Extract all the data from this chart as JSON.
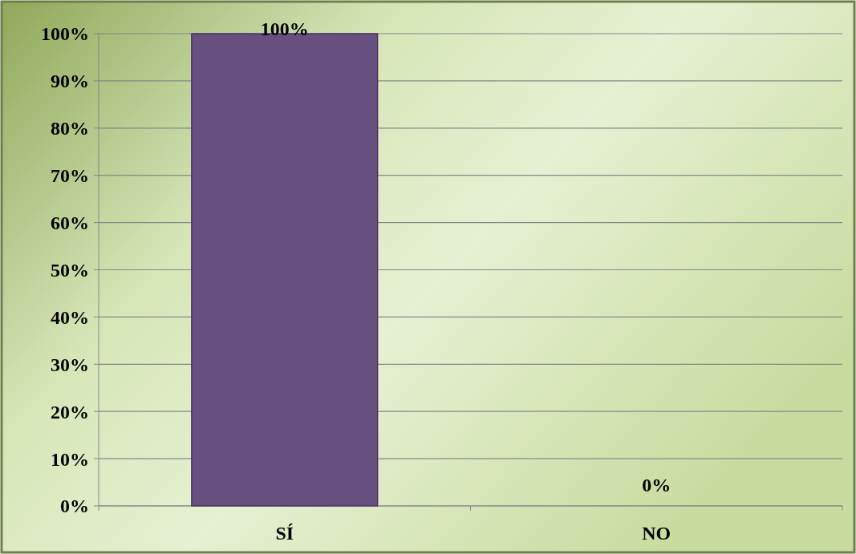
{
  "chart_data": {
    "type": "bar",
    "categories": [
      "SÍ",
      "NO"
    ],
    "values": [
      100,
      0
    ],
    "color": "#674f80",
    "value_labels": [
      "100%",
      "0%"
    ],
    "ylim": [
      0,
      100
    ],
    "yticks": [
      {
        "value": 0,
        "label": "0%"
      },
      {
        "value": 10,
        "label": "10%"
      },
      {
        "value": 20,
        "label": "20%"
      },
      {
        "value": 30,
        "label": "30%"
      },
      {
        "value": 40,
        "label": "40%"
      },
      {
        "value": 50,
        "label": "50%"
      },
      {
        "value": 60,
        "label": "60%"
      },
      {
        "value": 70,
        "label": "70%"
      },
      {
        "value": 80,
        "label": "80%"
      },
      {
        "value": 90,
        "label": "90%"
      },
      {
        "value": 100,
        "label": "100%"
      }
    ],
    "grid": "y"
  }
}
